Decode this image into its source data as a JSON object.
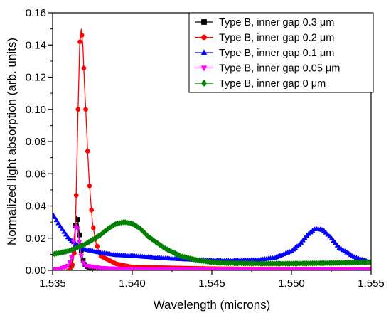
{
  "chart_data": {
    "type": "line",
    "title": "",
    "xlabel": "Wavelength (microns)",
    "ylabel": "Normalized light absorption (arb. units)",
    "xlim": [
      1.535,
      1.555
    ],
    "ylim": [
      0,
      0.16
    ],
    "x_ticks": [
      "1.535",
      "1.540",
      "1.545",
      "1.550",
      "1.555"
    ],
    "y_ticks": [
      "0.00",
      "0.02",
      "0.04",
      "0.06",
      "0.08",
      "0.10",
      "0.12",
      "0.14",
      "0.16"
    ],
    "grid": false,
    "legend_position": "top-right",
    "series": [
      {
        "name": "Type B, inner gap 0.3 μm",
        "color": "#000000",
        "marker": "square",
        "x": [
          1.5362,
          1.5363,
          1.5364,
          1.5365,
          1.5366,
          1.5367,
          1.5368,
          1.5369,
          1.537,
          1.5372,
          1.5375,
          1.538,
          1.539,
          1.54,
          1.545,
          1.55,
          1.555
        ],
        "y": [
          0.003,
          0.01,
          0.024,
          0.034,
          0.03,
          0.02,
          0.012,
          0.007,
          0.004,
          0.002,
          0.001,
          0.0005,
          0.0003,
          0.0002,
          0.0001,
          0.0001,
          0.0001
        ]
      },
      {
        "name": "Type B, inner gap 0.2 μm",
        "color": "#ff0000",
        "marker": "circle",
        "x": [
          1.536,
          1.5362,
          1.5364,
          1.5365,
          1.5366,
          1.5367,
          1.5368,
          1.5369,
          1.537,
          1.5371,
          1.5372,
          1.5373,
          1.5375,
          1.5377,
          1.538,
          1.539,
          1.54,
          1.545,
          1.55,
          1.555
        ],
        "y": [
          0.0,
          0.001,
          0.013,
          0.055,
          0.1,
          0.14,
          0.15,
          0.14,
          0.116,
          0.096,
          0.074,
          0.055,
          0.03,
          0.018,
          0.009,
          0.004,
          0.002,
          0.001,
          0.0005,
          0.0005
        ]
      },
      {
        "name": "Type B, inner gap 0.1 μm",
        "color": "#0000ff",
        "marker": "triangle-up",
        "x": [
          1.535,
          1.5355,
          1.536,
          1.5365,
          1.537,
          1.538,
          1.539,
          1.54,
          1.542,
          1.544,
          1.546,
          1.548,
          1.549,
          1.55,
          1.5505,
          1.551,
          1.5515,
          1.552,
          1.5525,
          1.553,
          1.554,
          1.555
        ],
        "y": [
          0.035,
          0.027,
          0.02,
          0.016,
          0.013,
          0.011,
          0.0095,
          0.009,
          0.0075,
          0.0065,
          0.006,
          0.0065,
          0.008,
          0.012,
          0.016,
          0.022,
          0.026,
          0.025,
          0.02,
          0.014,
          0.008,
          0.005
        ]
      },
      {
        "name": "Type B, inner gap 0.05 μm",
        "color": "#ff00ff",
        "marker": "triangle-down",
        "x": [
          1.535,
          1.5355,
          1.536,
          1.5362,
          1.5363,
          1.5364,
          1.5365,
          1.5366,
          1.5367,
          1.5368,
          1.5369,
          1.537,
          1.538,
          1.539,
          1.54,
          1.545,
          1.55,
          1.555
        ],
        "y": [
          0.0005,
          0.001,
          0.003,
          0.008,
          0.016,
          0.025,
          0.029,
          0.024,
          0.016,
          0.009,
          0.005,
          0.003,
          0.0015,
          0.001,
          0.0008,
          0.0005,
          0.0005,
          0.0005
        ]
      },
      {
        "name": "Type B, inner gap 0 μm",
        "color": "#008000",
        "marker": "diamond",
        "x": [
          1.535,
          1.536,
          1.537,
          1.538,
          1.5385,
          1.539,
          1.5395,
          1.54,
          1.5405,
          1.541,
          1.542,
          1.543,
          1.544,
          1.545,
          1.546,
          1.548,
          1.55,
          1.552,
          1.555
        ],
        "y": [
          0.01,
          0.012,
          0.016,
          0.022,
          0.026,
          0.029,
          0.03,
          0.029,
          0.026,
          0.021,
          0.014,
          0.009,
          0.0065,
          0.005,
          0.0045,
          0.0042,
          0.0042,
          0.0045,
          0.005
        ]
      }
    ]
  }
}
